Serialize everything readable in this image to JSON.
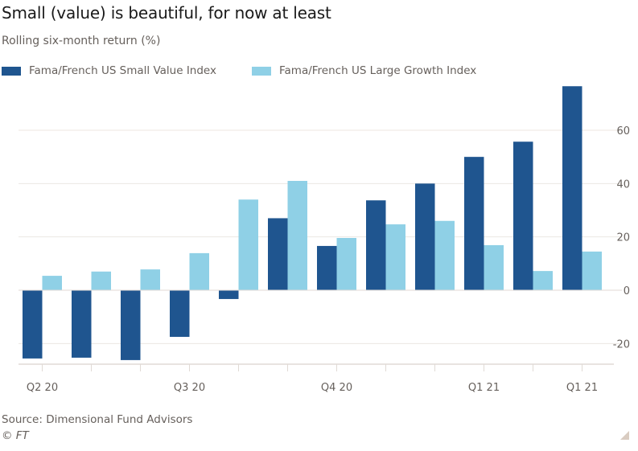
{
  "chart_data": {
    "type": "bar",
    "title": "Small (value) is beautiful, for now at least",
    "subtitle": "Rolling six-month return (%)",
    "xlabel": "",
    "ylabel": "Rolling six-month return (%)",
    "ylim": [
      -28,
      80
    ],
    "yticks": [
      60,
      40,
      20,
      0,
      -20
    ],
    "ytick_labels": [
      "60",
      "40",
      "20",
      "0",
      "-20"
    ],
    "y_axis_position": "right",
    "grid": true,
    "legend_position": "top-left",
    "categories": [
      "Q2 20 (1)",
      "2",
      "3",
      "Q3 20 (4)",
      "5",
      "6",
      "Q4 20 (7)",
      "8",
      "9",
      "Q1 21 (10)",
      "11",
      "Q1 21 (12)"
    ],
    "xtick_labels": [
      {
        "index": 0,
        "label": "Q2 20"
      },
      {
        "index": 3,
        "label": "Q3 20"
      },
      {
        "index": 6,
        "label": "Q4 20"
      },
      {
        "index": 9,
        "label": "Q1 21"
      },
      {
        "index": 11,
        "label": "Q1 21"
      }
    ],
    "series": [
      {
        "name": "Fama/French US Small Value Index",
        "color": "#1f558f",
        "values": [
          -25.6,
          -25.3,
          -26.2,
          -17.5,
          -3.3,
          27,
          16.6,
          33.7,
          40,
          50,
          55.7,
          76.5
        ]
      },
      {
        "name": "Fama/French US Large Growth Index",
        "color": "#8fd0e6",
        "values": [
          5.4,
          7,
          7.8,
          13.9,
          34,
          41,
          19.6,
          24.7,
          26,
          16.9,
          7.2,
          14.5
        ]
      }
    ]
  },
  "footer": {
    "source": "Source: Dimensional Fund Advisors",
    "copyright": "© FT"
  },
  "colors": {
    "gridline": "#ece7e2",
    "axis": "#e0dad5"
  }
}
